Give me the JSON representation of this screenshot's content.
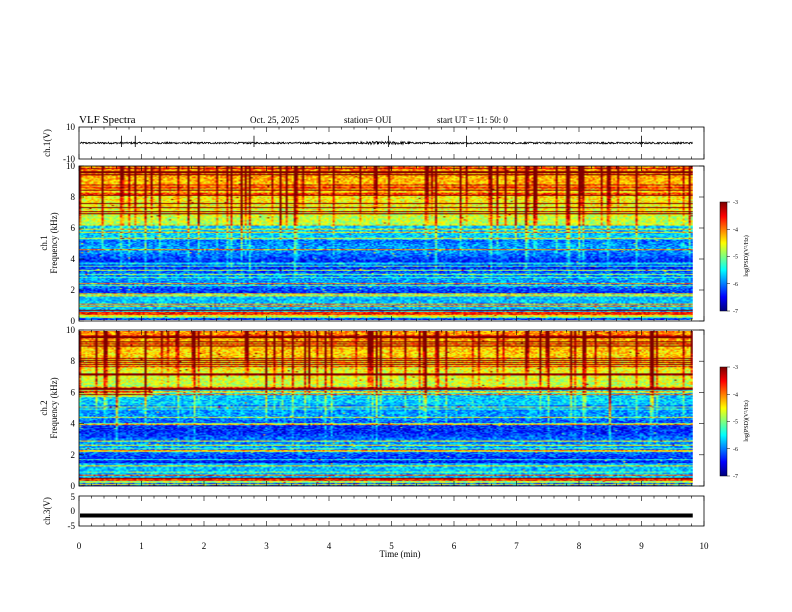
{
  "header": {
    "title": "VLF Spectra",
    "date": "Oct. 25, 2025",
    "station": "station= OUI",
    "start": "start  UT  =   11: 50: 0"
  },
  "chart_data": [
    {
      "type": "line",
      "name": "ch1-waveform",
      "ylabel": "ch.1(V)",
      "ylim": [
        -10,
        10
      ],
      "yticks": [
        "10",
        "-10"
      ],
      "baseline": 0,
      "spikes_min": [
        0.68,
        0.9,
        2.8,
        4.95,
        6.2,
        9.0
      ]
    },
    {
      "type": "heatmap",
      "name": "ch1-spectrogram",
      "ylabel_top": "ch.1",
      "ylabel": "Frequency  (kHz)",
      "ylim": [
        0,
        10
      ],
      "yticks": [
        "0",
        "2",
        "4",
        "6",
        "8",
        "10"
      ],
      "colorbar": {
        "label": "log(PSD)(V²/Hz)",
        "range": [
          -7,
          -3
        ],
        "ticks": [
          "-3",
          "-4",
          "-5",
          "-6",
          "-7"
        ]
      }
    },
    {
      "type": "heatmap",
      "name": "ch2-spectrogram",
      "ylabel_top": "ch.2",
      "ylabel": "Frequency  (kHz)",
      "ylim": [
        0,
        10
      ],
      "yticks": [
        "0",
        "2",
        "4",
        "6",
        "8",
        "10"
      ],
      "colorbar": {
        "label": "log(PSD)(V²/Hz)",
        "range": [
          -7,
          -3
        ],
        "ticks": [
          "-3",
          "-4",
          "-5",
          "-6",
          "-7"
        ]
      }
    },
    {
      "type": "line",
      "name": "ch3-waveform",
      "ylabel": "ch.3(V)",
      "ylim": [
        -5,
        5
      ],
      "yticks": [
        "5",
        "0",
        "-5"
      ],
      "baseline": -1.5
    }
  ],
  "xaxis": {
    "label": "Time  (min)",
    "range": [
      0,
      10
    ],
    "ticks": [
      "0",
      "1",
      "2",
      "3",
      "4",
      "5",
      "6",
      "7",
      "8",
      "9",
      "10"
    ],
    "data_end": 9.82
  }
}
